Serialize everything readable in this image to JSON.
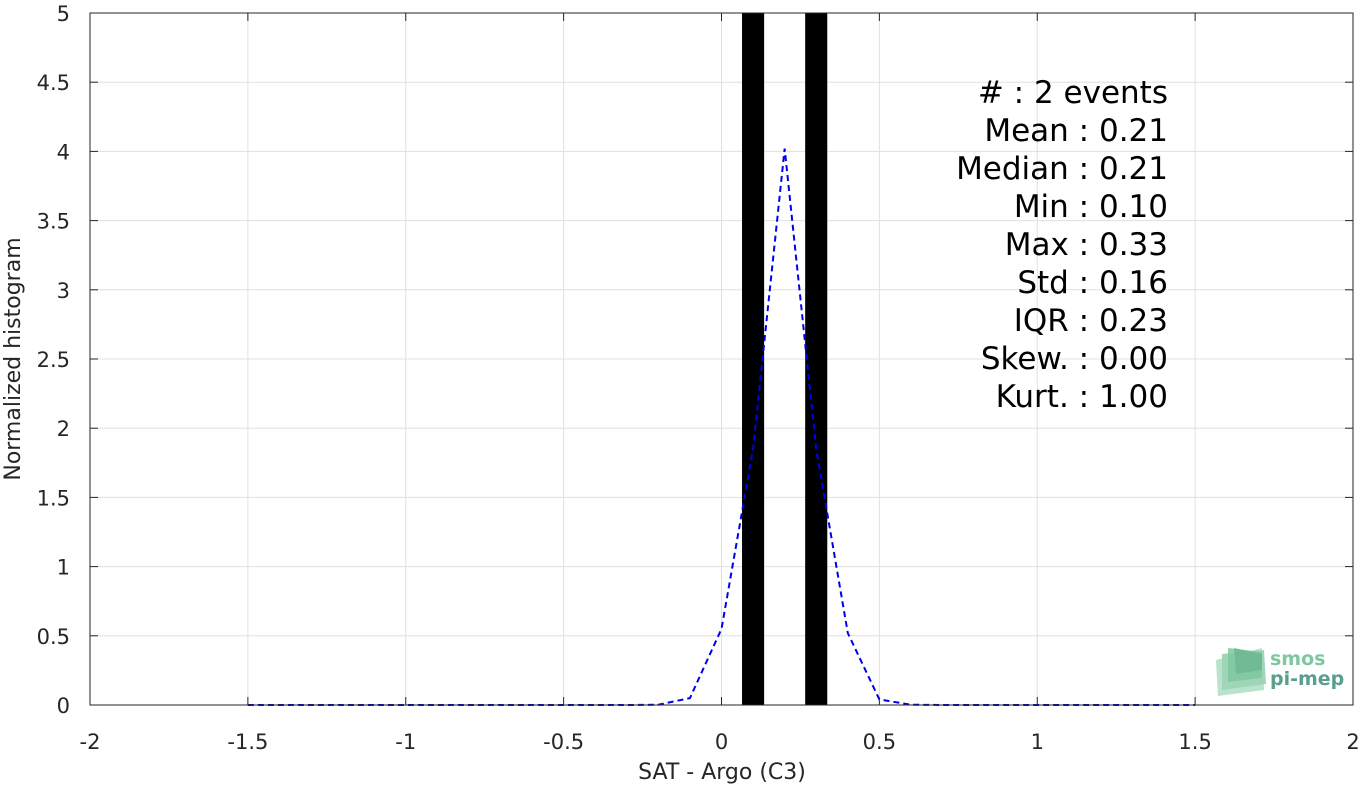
{
  "chart_data": {
    "type": "bar",
    "xlabel": "SAT - Argo (C3)",
    "ylabel": "Normalized histogram",
    "xlim": [
      -2,
      2
    ],
    "ylim": [
      0,
      5
    ],
    "xticks": [
      -2,
      -1.5,
      -1,
      -0.5,
      0,
      0.5,
      1,
      1.5,
      2
    ],
    "xtick_labels": [
      "-2",
      "-1.5",
      "-1",
      "-0.5",
      "0",
      "0.5",
      "1",
      "1.5",
      "2"
    ],
    "yticks": [
      0,
      0.5,
      1,
      1.5,
      2,
      2.5,
      3,
      3.5,
      4,
      4.5,
      5
    ],
    "ytick_labels": [
      "0",
      "0.5",
      "1",
      "1.5",
      "2",
      "2.5",
      "3",
      "3.5",
      "4",
      "4.5",
      "5"
    ],
    "grid": true,
    "bars": [
      {
        "x": 0.1,
        "height": 5
      },
      {
        "x": 0.3,
        "height": 5
      }
    ],
    "bar_width": 0.07,
    "series": [
      {
        "type": "line",
        "style": "dashed",
        "color": "#0000ee",
        "x": [
          -1.5,
          -1.4,
          -1.3,
          -1.2,
          -1.1,
          -1.0,
          -0.9,
          -0.8,
          -0.7,
          -0.6,
          -0.5,
          -0.4,
          -0.3,
          -0.2,
          -0.1,
          0.0,
          0.1,
          0.2,
          0.3,
          0.4,
          0.5,
          0.6,
          0.7,
          0.8,
          0.9,
          1.0,
          1.1,
          1.2,
          1.3,
          1.4,
          1.5
        ],
        "y": [
          0,
          0,
          0,
          0,
          0,
          0,
          0,
          0,
          0,
          0,
          0,
          0,
          0,
          0.002,
          0.05,
          0.55,
          1.85,
          4.02,
          1.85,
          0.52,
          0.04,
          0.002,
          0,
          0,
          0,
          0,
          0,
          0,
          0,
          0,
          0
        ]
      }
    ],
    "annotations": [
      {
        "text": "#  : 2 events"
      },
      {
        "text": "Mean : 0.21"
      },
      {
        "text": "Median : 0.21"
      },
      {
        "text": "Min : 0.10"
      },
      {
        "text": "Max : 0.33"
      },
      {
        "text": "Std : 0.16"
      },
      {
        "text": "IQR : 0.23"
      },
      {
        "text": "Skew. : 0.00"
      },
      {
        "text": "Kurt. : 1.00"
      }
    ]
  },
  "logo": {
    "line1": "smos",
    "line2": "pi-mep",
    "color_top": "#7ec8a0",
    "color_bottom": "#5a9e8c"
  }
}
